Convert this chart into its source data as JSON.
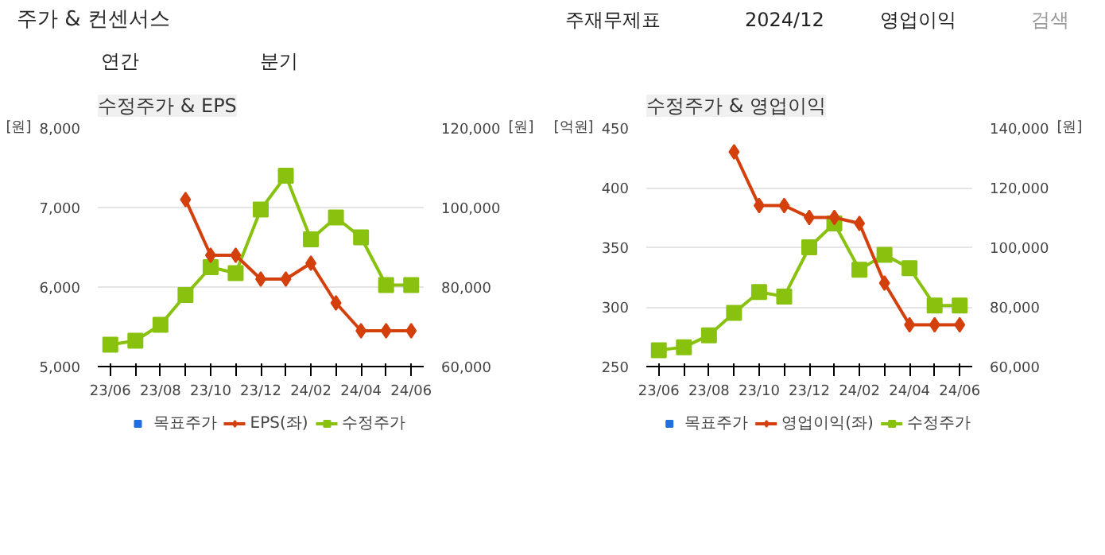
{
  "chart_data": [
    {
      "type": "other",
      "title": "주가 & 컨센서스",
      "annotations": [
        "주재무제표",
        "2024/12",
        "영업이익",
        "검색",
        "연간",
        "분기"
      ]
    },
    {
      "type": "line",
      "title": "수정주가 & EPS",
      "ylabel": "[원]",
      "y2label": "[원]",
      "categories": [
        "23/06",
        null,
        "23/08",
        null,
        "23/10",
        null,
        "23/12",
        null,
        "24/02",
        null,
        "24/04",
        null,
        "24/06"
      ],
      "ylim": [
        5000,
        8000
      ],
      "yticks": [
        {
          "value": 5000,
          "label": "5,000"
        },
        {
          "value": 6000,
          "label": "6,000"
        },
        {
          "value": 7000,
          "label": "7,000"
        },
        {
          "value": 8000,
          "label": "8,000"
        }
      ],
      "y2lim": [
        60000,
        120000
      ],
      "y2ticks": [
        {
          "value": 60000,
          "label": "60,000"
        },
        {
          "value": 80000,
          "label": "80,000"
        },
        {
          "value": 100000,
          "label": "100,000"
        },
        {
          "value": 120000,
          "label": "120,000"
        }
      ],
      "grid": "y",
      "legend": "bottom",
      "series": [
        {
          "name": "목표주가",
          "color": "#1f6fe0",
          "marker": "square",
          "axis": "y2",
          "values": [
            null,
            null,
            null,
            null,
            null,
            null,
            null,
            null,
            null,
            null,
            null,
            null,
            null
          ]
        },
        {
          "name": "EPS(좌)",
          "color": "#d4400c",
          "marker": "diamond",
          "values": [
            null,
            null,
            null,
            7100,
            6400,
            6400,
            6100,
            6100,
            6300,
            5800,
            5450,
            5450,
            5450
          ]
        },
        {
          "name": "수정주가",
          "color": "#88c20e",
          "marker": "square",
          "axis": "y2",
          "values": [
            65500,
            66500,
            70500,
            78000,
            85000,
            83500,
            99500,
            108000,
            92000,
            97500,
            92500,
            80500,
            80500
          ]
        }
      ]
    },
    {
      "type": "line",
      "title": "수정주가 & 영업이익",
      "ylabel": "[억원]",
      "y2label": "[원]",
      "categories": [
        "23/06",
        null,
        "23/08",
        null,
        "23/10",
        null,
        "23/12",
        null,
        "24/02",
        null,
        "24/04",
        null,
        "24/06"
      ],
      "ylim": [
        250,
        450
      ],
      "yticks": [
        250,
        300,
        350,
        400,
        450
      ],
      "y2lim": [
        60000,
        140000
      ],
      "y2ticks": [
        {
          "value": 60000,
          "label": "60,000"
        },
        {
          "value": 80000,
          "label": "80,000"
        },
        {
          "value": 100000,
          "label": "100,000"
        },
        {
          "value": 120000,
          "label": "120,000"
        },
        {
          "value": 140000,
          "label": "140,000"
        }
      ],
      "grid": "y",
      "legend": "bottom",
      "series": [
        {
          "name": "목표주가",
          "color": "#1f6fe0",
          "marker": "square",
          "axis": "y2",
          "values": [
            null,
            null,
            null,
            null,
            null,
            null,
            null,
            null,
            null,
            null,
            null,
            null,
            null
          ]
        },
        {
          "name": "영업이익(좌)",
          "color": "#d4400c",
          "marker": "diamond",
          "values": [
            null,
            null,
            null,
            430,
            385,
            385,
            375,
            375,
            370,
            320,
            285,
            285,
            285
          ]
        },
        {
          "name": "수정주가",
          "color": "#88c20e",
          "marker": "square",
          "axis": "y2",
          "values": [
            65500,
            66500,
            70500,
            78000,
            85000,
            83500,
            100000,
            108000,
            92500,
            97500,
            93000,
            80500,
            80500
          ]
        }
      ]
    }
  ]
}
